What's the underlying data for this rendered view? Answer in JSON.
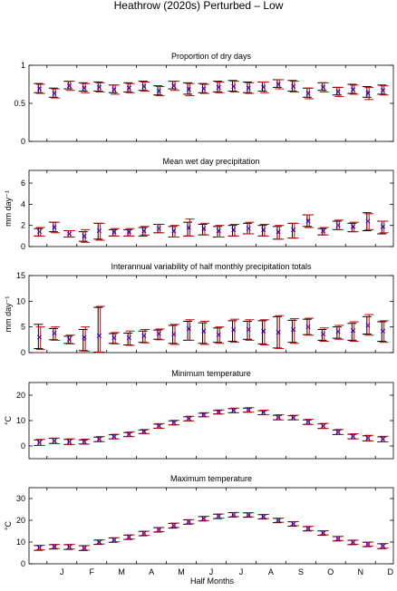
{
  "figure": {
    "suptitle": "Heathrow (2020s) Perturbed – Low",
    "xlabel": "Half Months",
    "month_ticks": [
      "J",
      "F",
      "M",
      "A",
      "M",
      "J",
      "J",
      "A",
      "S",
      "O",
      "N",
      "D"
    ]
  },
  "legend_colors": {
    "observed": "#000000",
    "modelled": "#cc0000",
    "marker_a": "#0000cc",
    "marker_b": "#cc00cc"
  },
  "chart_data": [
    {
      "type": "errorbar",
      "title": "Proportion of dry days",
      "ylabel": "",
      "ylim": [
        0,
        1
      ],
      "yticks": [
        "0",
        "0.5",
        "1"
      ],
      "ytick_values": [
        0,
        0.5,
        1
      ],
      "x": [
        1,
        2,
        3,
        4,
        5,
        6,
        7,
        8,
        9,
        10,
        11,
        12,
        13,
        14,
        15,
        16,
        17,
        18,
        19,
        20,
        21,
        22,
        23,
        24
      ],
      "series": [
        {
          "role": "observed",
          "mean": [
            0.7,
            0.64,
            0.74,
            0.71,
            0.72,
            0.69,
            0.71,
            0.73,
            0.67,
            0.74,
            0.7,
            0.7,
            0.72,
            0.73,
            0.71,
            0.72,
            0.76,
            0.73,
            0.64,
            0.72,
            0.66,
            0.69,
            0.65,
            0.68
          ],
          "low": [
            0.64,
            0.58,
            0.69,
            0.66,
            0.66,
            0.64,
            0.65,
            0.67,
            0.61,
            0.69,
            0.62,
            0.64,
            0.65,
            0.66,
            0.64,
            0.66,
            0.71,
            0.66,
            0.58,
            0.67,
            0.61,
            0.63,
            0.58,
            0.62
          ],
          "high": [
            0.76,
            0.7,
            0.79,
            0.77,
            0.78,
            0.74,
            0.77,
            0.79,
            0.73,
            0.79,
            0.77,
            0.76,
            0.79,
            0.8,
            0.78,
            0.78,
            0.81,
            0.8,
            0.7,
            0.77,
            0.71,
            0.75,
            0.72,
            0.74
          ]
        },
        {
          "role": "modelled",
          "mean": [
            0.69,
            0.63,
            0.73,
            0.7,
            0.71,
            0.68,
            0.7,
            0.72,
            0.66,
            0.73,
            0.68,
            0.69,
            0.71,
            0.72,
            0.7,
            0.71,
            0.75,
            0.72,
            0.63,
            0.71,
            0.65,
            0.68,
            0.63,
            0.67
          ],
          "low": [
            0.63,
            0.57,
            0.67,
            0.64,
            0.65,
            0.62,
            0.64,
            0.66,
            0.6,
            0.67,
            0.6,
            0.63,
            0.64,
            0.65,
            0.63,
            0.64,
            0.69,
            0.65,
            0.56,
            0.65,
            0.59,
            0.62,
            0.55,
            0.61
          ],
          "high": [
            0.75,
            0.69,
            0.79,
            0.76,
            0.77,
            0.74,
            0.76,
            0.78,
            0.72,
            0.79,
            0.76,
            0.75,
            0.78,
            0.79,
            0.77,
            0.78,
            0.81,
            0.79,
            0.7,
            0.77,
            0.71,
            0.74,
            0.71,
            0.73
          ]
        }
      ]
    },
    {
      "type": "errorbar",
      "title": "Mean wet day precipitation",
      "ylabel": "mm day⁻¹",
      "ylim": [
        0,
        7.2
      ],
      "yticks": [
        "0",
        "2",
        "4",
        "6"
      ],
      "ytick_values": [
        0,
        2,
        4,
        6
      ],
      "x": [
        1,
        2,
        3,
        4,
        5,
        6,
        7,
        8,
        9,
        10,
        11,
        12,
        13,
        14,
        15,
        16,
        17,
        18,
        19,
        20,
        21,
        22,
        23,
        24
      ],
      "series": [
        {
          "role": "observed",
          "mean": [
            1.4,
            1.9,
            1.2,
            0.9,
            1.5,
            1.3,
            1.3,
            1.4,
            1.7,
            1.4,
            1.7,
            1.6,
            1.4,
            1.5,
            1.7,
            1.5,
            1.3,
            1.5,
            2.5,
            1.4,
            2.0,
            1.8,
            2.4,
            1.8
          ],
          "low": [
            1.0,
            1.4,
            0.9,
            0.5,
            0.7,
            1.0,
            1.0,
            1.0,
            1.3,
            0.9,
            1.0,
            1.1,
            0.9,
            1.0,
            1.2,
            1.0,
            0.7,
            0.8,
            1.9,
            1.1,
            1.6,
            1.4,
            1.5,
            1.2
          ],
          "high": [
            1.7,
            2.3,
            1.5,
            1.4,
            2.2,
            1.6,
            1.6,
            1.8,
            2.1,
            1.9,
            2.3,
            2.1,
            1.9,
            2.0,
            2.2,
            2.0,
            1.9,
            2.2,
            3.0,
            1.7,
            2.4,
            2.2,
            3.2,
            2.4
          ]
        },
        {
          "role": "modelled",
          "mean": [
            1.4,
            1.8,
            1.2,
            1.0,
            1.5,
            1.4,
            1.4,
            1.5,
            1.7,
            1.5,
            1.8,
            1.7,
            1.5,
            1.6,
            1.7,
            1.6,
            1.4,
            1.6,
            2.4,
            1.5,
            2.0,
            1.9,
            2.4,
            1.9
          ],
          "low": [
            1.0,
            1.3,
            0.9,
            0.4,
            0.6,
            1.0,
            1.0,
            1.1,
            1.3,
            0.9,
            1.0,
            1.1,
            0.9,
            1.0,
            1.2,
            1.0,
            0.7,
            0.8,
            1.8,
            1.1,
            1.6,
            1.4,
            1.6,
            1.3
          ],
          "high": [
            1.8,
            2.3,
            1.5,
            1.6,
            2.2,
            1.7,
            1.7,
            1.9,
            2.1,
            2.0,
            2.6,
            2.2,
            2.0,
            2.1,
            2.3,
            2.1,
            2.0,
            2.2,
            3.0,
            1.8,
            2.5,
            2.3,
            3.1,
            2.4
          ]
        }
      ]
    },
    {
      "type": "errorbar",
      "title": "Interannual variability of half monthly precipitation totals",
      "ylabel": "mm day⁻¹",
      "ylim": [
        0,
        15
      ],
      "yticks": [
        "0",
        "5",
        "10",
        "15"
      ],
      "ytick_values": [
        0,
        5,
        10,
        15
      ],
      "x": [
        1,
        2,
        3,
        4,
        5,
        6,
        7,
        8,
        9,
        10,
        11,
        12,
        13,
        14,
        15,
        16,
        17,
        18,
        19,
        20,
        21,
        22,
        23,
        24
      ],
      "series": [
        {
          "role": "observed",
          "mean": [
            3.0,
            3.7,
            2.5,
            2.5,
            3.2,
            2.8,
            2.8,
            3.2,
            3.6,
            3.5,
            4.5,
            4.0,
            3.4,
            4.3,
            4.4,
            4.0,
            3.8,
            4.3,
            5.0,
            3.5,
            4.0,
            4.1,
            5.2,
            4.1
          ],
          "low": [
            0.8,
            2.5,
            1.8,
            0.4,
            0.1,
            1.8,
            1.5,
            2.0,
            2.6,
            1.8,
            2.4,
            1.8,
            2.0,
            2.2,
            2.6,
            1.7,
            0.9,
            2.0,
            3.5,
            2.4,
            2.8,
            2.4,
            3.6,
            2.2
          ],
          "high": [
            5.5,
            4.7,
            3.2,
            4.5,
            8.8,
            3.7,
            3.8,
            4.2,
            4.4,
            5.3,
            6.1,
            5.8,
            4.8,
            6.2,
            6.1,
            6.2,
            7.0,
            6.3,
            6.5,
            4.5,
            5.0,
            5.7,
            7.0,
            6.0
          ]
        },
        {
          "role": "modelled",
          "mean": [
            3.0,
            3.8,
            2.6,
            3.0,
            3.3,
            2.9,
            2.9,
            3.3,
            3.7,
            3.6,
            4.7,
            4.2,
            3.5,
            4.5,
            4.5,
            4.2,
            4.0,
            4.5,
            5.0,
            3.6,
            4.1,
            4.3,
            5.3,
            4.2
          ],
          "low": [
            0.6,
            2.4,
            1.7,
            0.3,
            0.1,
            1.7,
            1.4,
            1.9,
            2.5,
            1.6,
            2.4,
            1.6,
            1.8,
            2.0,
            2.4,
            1.5,
            0.8,
            1.8,
            3.4,
            2.2,
            2.6,
            2.2,
            3.4,
            2.0
          ],
          "high": [
            5.0,
            5.0,
            3.4,
            5.0,
            9.0,
            3.9,
            4.2,
            4.5,
            4.6,
            5.5,
            6.4,
            6.1,
            5.0,
            6.5,
            6.4,
            6.4,
            7.2,
            6.6,
            6.7,
            4.8,
            5.3,
            6.0,
            7.4,
            6.2
          ]
        }
      ]
    },
    {
      "type": "errorbar",
      "title": "Minimum temperature",
      "ylabel": "°C",
      "ylim": [
        -5,
        25
      ],
      "yticks": [
        "0",
        "10",
        "20"
      ],
      "ytick_values": [
        0,
        10,
        20
      ],
      "x": [
        1,
        2,
        3,
        4,
        5,
        6,
        7,
        8,
        9,
        10,
        11,
        12,
        13,
        14,
        15,
        16,
        17,
        18,
        19,
        20,
        21,
        22,
        23,
        24
      ],
      "series": [
        {
          "role": "observed",
          "mean": [
            1.3,
            2.0,
            1.6,
            1.6,
            2.6,
            3.6,
            4.5,
            5.6,
            7.8,
            9.1,
            10.7,
            12.2,
            13.3,
            13.9,
            14.1,
            13.1,
            11.2,
            11.1,
            9.4,
            7.8,
            5.4,
            3.7,
            3.0,
            2.6
          ],
          "low": [
            0.2,
            1.0,
            0.6,
            0.8,
            1.7,
            2.8,
            3.7,
            4.9,
            7.0,
            8.3,
            9.9,
            11.5,
            12.6,
            13.1,
            13.3,
            12.3,
            10.3,
            10.3,
            8.5,
            6.9,
            4.5,
            2.8,
            2.0,
            1.6
          ],
          "high": [
            2.4,
            3.0,
            2.6,
            2.4,
            3.5,
            4.4,
            5.3,
            6.3,
            8.6,
            9.9,
            11.5,
            12.9,
            14.0,
            14.7,
            14.9,
            13.9,
            12.1,
            11.9,
            10.3,
            8.7,
            6.3,
            4.6,
            4.0,
            3.6
          ]
        },
        {
          "role": "modelled",
          "mean": [
            1.4,
            2.0,
            1.7,
            1.7,
            2.7,
            3.7,
            4.6,
            5.7,
            7.9,
            9.2,
            10.8,
            12.3,
            13.4,
            14.0,
            14.2,
            13.2,
            11.3,
            11.2,
            9.5,
            7.9,
            5.5,
            3.8,
            3.1,
            2.7
          ],
          "low": [
            0.2,
            0.9,
            0.6,
            0.7,
            1.7,
            2.8,
            3.7,
            4.9,
            7.0,
            8.3,
            9.9,
            11.5,
            12.6,
            13.1,
            13.3,
            12.3,
            10.3,
            10.3,
            8.5,
            6.9,
            4.5,
            2.8,
            2.0,
            1.6
          ],
          "high": [
            2.6,
            3.1,
            2.8,
            2.7,
            3.7,
            4.6,
            5.5,
            6.5,
            8.8,
            10.1,
            11.7,
            13.1,
            14.2,
            14.9,
            15.1,
            14.1,
            12.3,
            12.1,
            10.5,
            8.9,
            6.5,
            4.8,
            4.2,
            3.8
          ]
        }
      ]
    },
    {
      "type": "errorbar",
      "title": "Maximum temperature",
      "ylabel": "°C",
      "ylim": [
        0,
        35
      ],
      "yticks": [
        "0",
        "10",
        "20",
        "30"
      ],
      "ytick_values": [
        0,
        10,
        20,
        30
      ],
      "x": [
        1,
        2,
        3,
        4,
        5,
        6,
        7,
        8,
        9,
        10,
        11,
        12,
        13,
        14,
        15,
        16,
        17,
        18,
        19,
        20,
        21,
        22,
        23,
        24
      ],
      "series": [
        {
          "role": "observed",
          "mean": [
            7.3,
            7.8,
            7.7,
            7.2,
            9.9,
            10.9,
            12.2,
            13.9,
            15.6,
            17.5,
            19.2,
            20.7,
            21.8,
            22.5,
            22.4,
            21.6,
            19.9,
            18.3,
            16.1,
            14.1,
            11.5,
            9.8,
            8.9,
            8.1
          ],
          "low": [
            6.2,
            6.8,
            6.6,
            6.1,
            8.9,
            9.9,
            11.2,
            12.9,
            14.6,
            16.4,
            18.2,
            19.7,
            20.8,
            21.5,
            21.4,
            20.6,
            18.9,
            17.3,
            15.1,
            13.1,
            10.5,
            8.8,
            7.9,
            7.0
          ],
          "high": [
            8.4,
            8.8,
            8.8,
            8.3,
            10.9,
            11.9,
            13.2,
            14.9,
            16.6,
            18.6,
            20.2,
            21.7,
            22.8,
            23.5,
            23.4,
            22.6,
            20.9,
            19.3,
            17.1,
            15.1,
            12.5,
            10.8,
            9.9,
            9.2
          ]
        },
        {
          "role": "modelled",
          "mean": [
            7.4,
            7.9,
            7.8,
            7.3,
            10.0,
            11.0,
            12.3,
            14.0,
            15.7,
            17.6,
            19.3,
            20.8,
            21.9,
            22.6,
            22.5,
            21.7,
            20.0,
            18.4,
            16.2,
            14.2,
            11.6,
            9.9,
            9.0,
            8.2
          ],
          "low": [
            6.4,
            7.0,
            6.8,
            6.3,
            9.1,
            10.1,
            11.4,
            13.1,
            14.8,
            16.7,
            18.4,
            19.9,
            21.0,
            21.7,
            21.6,
            20.8,
            19.1,
            17.5,
            15.3,
            13.3,
            10.7,
            9.0,
            8.1,
            7.2
          ],
          "high": [
            8.5,
            8.9,
            8.9,
            8.4,
            11.0,
            12.0,
            13.3,
            15.0,
            16.7,
            18.7,
            20.3,
            21.8,
            22.9,
            23.6,
            23.5,
            22.7,
            21.0,
            19.4,
            17.2,
            15.2,
            12.6,
            10.9,
            10.0,
            9.3
          ]
        }
      ]
    }
  ]
}
